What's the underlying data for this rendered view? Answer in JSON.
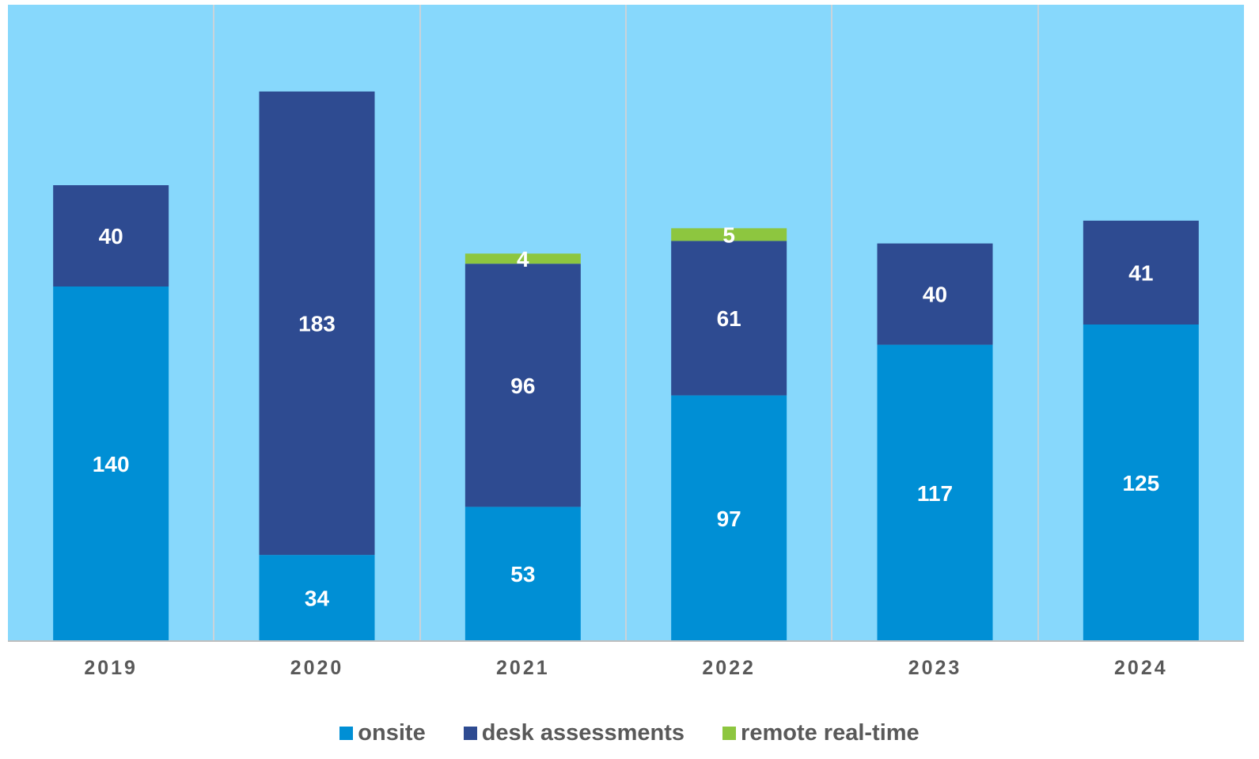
{
  "chart_data": {
    "type": "bar",
    "stacked": true,
    "categories": [
      "2019",
      "2020",
      "2021",
      "2022",
      "2023",
      "2024"
    ],
    "series": [
      {
        "name": "onsite",
        "color": "#008fd5",
        "values": [
          140,
          34,
          53,
          97,
          117,
          125
        ]
      },
      {
        "name": "desk assessments",
        "color": "#2e4b91",
        "values": [
          40,
          183,
          96,
          61,
          40,
          41
        ]
      },
      {
        "name": "remote real-time",
        "color": "#8dc63f",
        "values": [
          null,
          null,
          4,
          5,
          null,
          null
        ]
      }
    ],
    "ylim": [
      0,
      250
    ],
    "plot_background": "#87d8fc",
    "grid": false,
    "legend_position": "bottom"
  }
}
